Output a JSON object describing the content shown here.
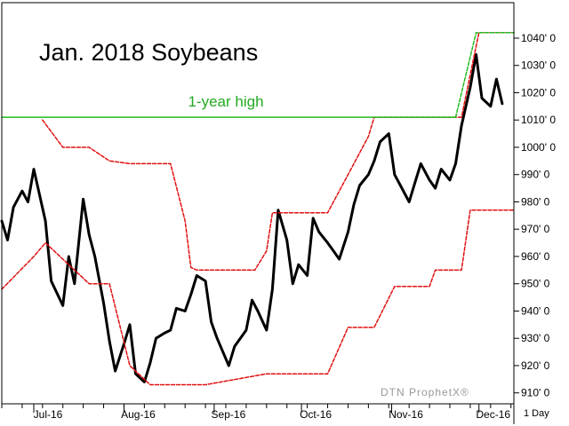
{
  "chart_data": {
    "type": "line",
    "title": "Jan. 2018 Soybeans",
    "watermark": "DTN ProphetX®",
    "period": "1 Day",
    "x_tick_labels": [
      "Jul-16",
      "Aug-16",
      "Sep-16",
      "Oct-16",
      "Nov-16",
      "Dec-16"
    ],
    "y_tick_labels": [
      "1040' 0",
      "1030' 0",
      "1020' 0",
      "1010' 0",
      "1000' 0",
      "990' 0",
      "980' 0",
      "970' 0",
      "960' 0",
      "950' 0",
      "940' 0",
      "930' 0",
      "920' 0",
      "910' 0"
    ],
    "y_ticks": [
      1040,
      1030,
      1020,
      1010,
      1000,
      990,
      980,
      970,
      960,
      950,
      940,
      930,
      920,
      910
    ],
    "ylim": [
      906,
      1053
    ],
    "x": [
      "2016-06-20",
      "2016-06-22",
      "2016-06-24",
      "2016-06-27",
      "2016-06-29",
      "2016-07-01",
      "2016-07-05",
      "2016-07-07",
      "2016-07-11",
      "2016-07-13",
      "2016-07-15",
      "2016-07-18",
      "2016-07-20",
      "2016-07-22",
      "2016-07-25",
      "2016-07-27",
      "2016-07-29",
      "2016-08-01",
      "2016-08-03",
      "2016-08-05",
      "2016-08-08",
      "2016-08-10",
      "2016-08-12",
      "2016-08-15",
      "2016-08-17",
      "2016-08-19",
      "2016-08-22",
      "2016-08-24",
      "2016-08-26",
      "2016-08-29",
      "2016-08-31",
      "2016-09-02",
      "2016-09-06",
      "2016-09-08",
      "2016-09-12",
      "2016-09-14",
      "2016-09-16",
      "2016-09-19",
      "2016-09-21",
      "2016-09-23",
      "2016-09-26",
      "2016-09-28",
      "2016-09-30",
      "2016-10-03",
      "2016-10-05",
      "2016-10-07",
      "2016-10-10",
      "2016-10-12",
      "2016-10-14",
      "2016-10-17",
      "2016-10-19",
      "2016-10-21",
      "2016-10-24",
      "2016-10-26",
      "2016-10-28",
      "2016-10-31",
      "2016-11-02",
      "2016-11-04",
      "2016-11-07",
      "2016-11-09",
      "2016-11-11",
      "2016-11-14",
      "2016-11-16",
      "2016-11-18",
      "2016-11-21",
      "2016-11-23",
      "2016-11-25",
      "2016-11-28",
      "2016-11-30",
      "2016-12-02",
      "2016-12-05",
      "2016-12-07",
      "2016-12-09"
    ],
    "x_start": "2016-06-20",
    "x_end": "2016-12-13",
    "x_ticks": [
      "2016-07-01",
      "2016-08-01",
      "2016-09-01",
      "2016-10-01",
      "2016-11-01",
      "2016-12-01"
    ],
    "series": [
      {
        "values": [
          973,
          966,
          978,
          984,
          980,
          992,
          973,
          951,
          942,
          960,
          950,
          981,
          968,
          960,
          943,
          929,
          918,
          928,
          935,
          917,
          914,
          921,
          930,
          932,
          933,
          941,
          940,
          946,
          953,
          951,
          936,
          930,
          920,
          927,
          933,
          944,
          940,
          933,
          948,
          977,
          966,
          950,
          957,
          953,
          974,
          969,
          965,
          962,
          959,
          969,
          979,
          986,
          990,
          995,
          1002,
          1005,
          990,
          986,
          980,
          987,
          994,
          988,
          985,
          992,
          988,
          994,
          1008,
          1022,
          1034,
          1018,
          1015,
          1025,
          1016
        ],
        "color": "#000000"
      },
      {
        "x": [
          "2016-06-20",
          "2016-07-01",
          "2016-07-05",
          "2016-07-20",
          "2016-07-27",
          "2016-08-03",
          "2016-08-10",
          "2016-08-29",
          "2016-09-19",
          "2016-10-10",
          "2016-10-17",
          "2016-10-26",
          "2016-11-02",
          "2016-11-14",
          "2016-11-16",
          "2016-11-25",
          "2016-11-28",
          "2016-12-13"
        ],
        "values": [
          948,
          960,
          965,
          950,
          950,
          920,
          913,
          913,
          917,
          917,
          934,
          934,
          949,
          949,
          955,
          955,
          977,
          977
        ],
        "color": "#e01010",
        "dash": true
      },
      {
        "x": [
          "2016-07-04",
          "2016-07-11",
          "2016-07-20",
          "2016-07-27",
          "2016-08-03",
          "2016-08-17",
          "2016-08-22",
          "2016-08-24",
          "2016-08-26",
          "2016-09-15",
          "2016-09-19",
          "2016-09-21",
          "2016-10-10",
          "2016-10-17",
          "2016-10-24",
          "2016-10-26",
          "2016-11-25",
          "2016-12-01",
          "2016-12-13"
        ],
        "values": [
          1010,
          1000,
          1000,
          995,
          994,
          994,
          973,
          956,
          955,
          955,
          962,
          976,
          976,
          990,
          1004,
          1011,
          1011,
          1042,
          1042
        ],
        "color": "#e01010",
        "dash": true
      },
      {
        "x": [
          "2016-06-20",
          "2016-11-23"
        ],
        "values": [
          1011,
          1011
        ],
        "color": "#22bb22"
      },
      {
        "x": [
          "2016-11-23",
          "2016-11-30",
          "2016-12-13"
        ],
        "values": [
          1011,
          1042,
          1042
        ],
        "color": "#22bb22",
        "dash": true
      }
    ],
    "annotations": [
      {
        "text": "1-year high",
        "x": "2016-09-05",
        "y": 1013,
        "color": "#22aa22"
      }
    ],
    "grid": false,
    "legend": "none"
  }
}
